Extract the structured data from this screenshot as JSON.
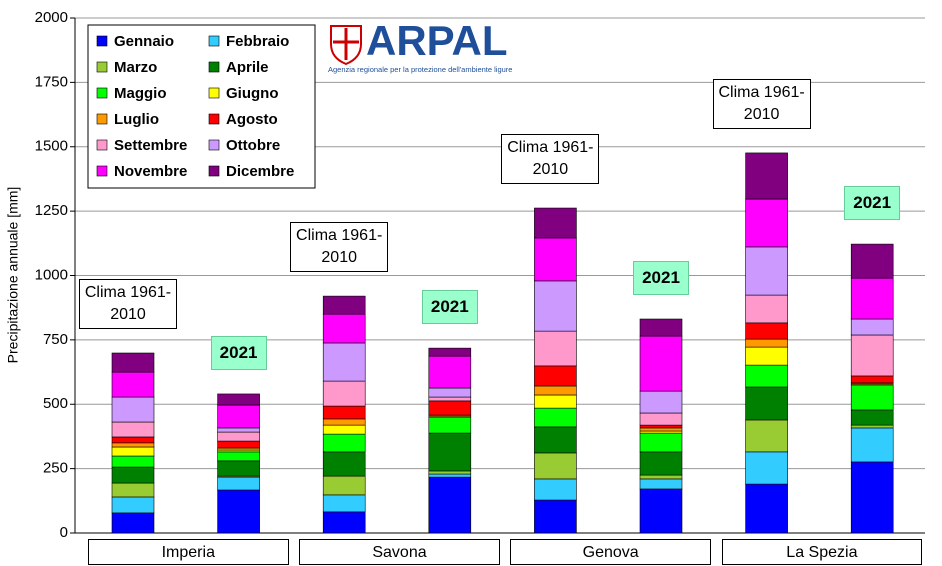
{
  "chart_data": {
    "type": "bar",
    "stacked": true,
    "ylabel": "Precipitazione annuale [mm]",
    "categories": [
      "Clima 1961-2010",
      "2021",
      "Clima 1961-2010",
      "2021",
      "Clima 1961-2010",
      "2021",
      "Clima 1961-2010",
      "2021"
    ],
    "groups": [
      "Imperia",
      "Savona",
      "Genova",
      "La Spezia"
    ],
    "ylim": [
      0,
      2000
    ],
    "yticks": [
      0,
      250,
      500,
      750,
      1000,
      1250,
      1500,
      1750,
      2000
    ],
    "grid": true,
    "logo": {
      "name": "ARPAL",
      "subtitle": "Agenzia regionale per la protezione dell'ambiente ligure"
    },
    "series": [
      {
        "name": "Gennaio",
        "color": "#0000ff",
        "values": [
          78,
          167,
          82,
          217,
          128,
          171,
          190,
          276
        ]
      },
      {
        "name": "Febbraio",
        "color": "#33ccff",
        "values": [
          62,
          50,
          66,
          12,
          82,
          39,
          125,
          132
        ]
      },
      {
        "name": "Marzo",
        "color": "#99cc33",
        "values": [
          54,
          4,
          73,
          12,
          101,
          15,
          124,
          11
        ]
      },
      {
        "name": "Aprile",
        "color": "#008000",
        "values": [
          62,
          59,
          94,
          147,
          101,
          90,
          128,
          59
        ]
      },
      {
        "name": "Maggio",
        "color": "#00ff00",
        "values": [
          43,
          35,
          69,
          62,
          73,
          73,
          85,
          97
        ]
      },
      {
        "name": "Giugno",
        "color": "#ffff00",
        "values": [
          35,
          7,
          35,
          4,
          51,
          8,
          70,
          4
        ]
      },
      {
        "name": "Luglio",
        "color": "#ff9900",
        "values": [
          16,
          8,
          24,
          4,
          35,
          12,
          31,
          4
        ]
      },
      {
        "name": "Agosto",
        "color": "#ff0000",
        "values": [
          23,
          27,
          50,
          55,
          78,
          11,
          63,
          27
        ]
      },
      {
        "name": "Settembre",
        "color": "#ff99cc",
        "values": [
          58,
          35,
          97,
          15,
          135,
          47,
          108,
          159
        ]
      },
      {
        "name": "Ottobre",
        "color": "#cc99ff",
        "values": [
          97,
          16,
          148,
          35,
          195,
          85,
          187,
          62
        ]
      },
      {
        "name": "Novembre",
        "color": "#ff00ff",
        "values": [
          97,
          89,
          112,
          124,
          167,
          214,
          186,
          159
        ]
      },
      {
        "name": "Dicembre",
        "color": "#800080",
        "values": [
          74,
          43,
          70,
          31,
          116,
          66,
          179,
          132
        ]
      }
    ]
  }
}
